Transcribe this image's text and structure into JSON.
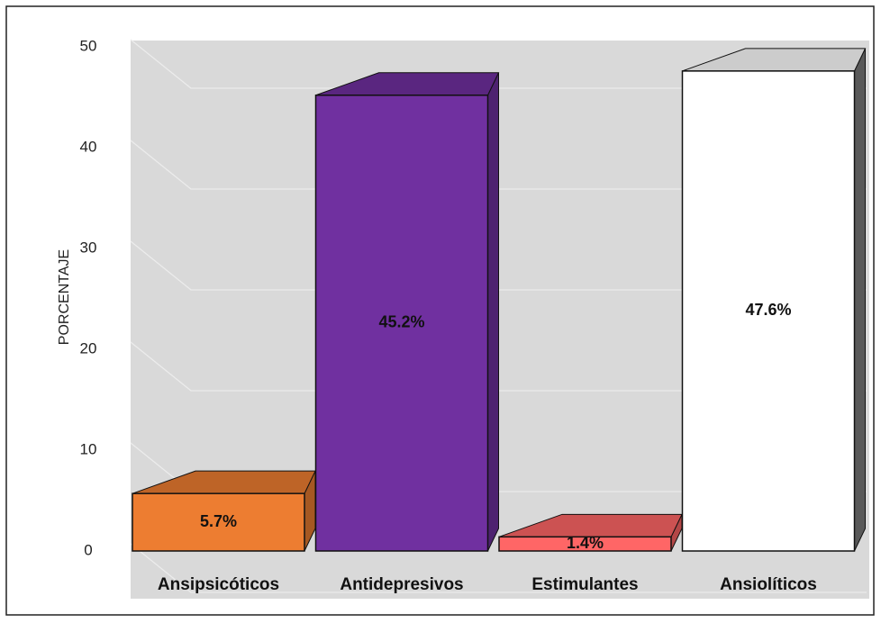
{
  "chart_data": {
    "type": "bar3d",
    "ylabel": "PORCENTAJE",
    "categories": [
      "Ansipsicóticos",
      "Antidepresivos",
      "Estimulantes",
      "Ansiolíticos"
    ],
    "values": [
      5.7,
      45.2,
      1.4,
      47.6
    ],
    "value_labels": [
      "5.7%",
      "45.2%",
      "1.4%",
      "47.6%"
    ],
    "colors": [
      "#ed7d31",
      "#7030a0",
      "#ff6666",
      "#ffffff"
    ],
    "ylim": [
      0,
      50
    ],
    "yticks": [
      0,
      10,
      20,
      30,
      40,
      50
    ],
    "grid": true
  }
}
